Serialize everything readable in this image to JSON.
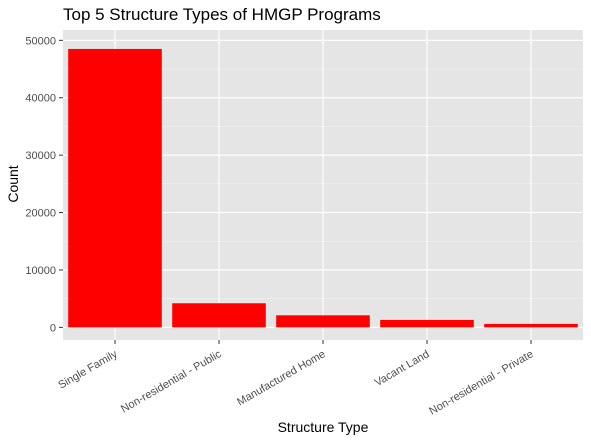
{
  "chart_data": {
    "type": "bar",
    "title": "Top 5 Structure Types of HMGP Programs",
    "xlabel": "Structure Type",
    "ylabel": "Count",
    "categories": [
      "Single Family",
      "Non-residential - Public",
      "Manufactured Home",
      "Vacant Land",
      "Non-residential - Private"
    ],
    "values": [
      48500,
      4200,
      2100,
      1300,
      600
    ],
    "yticks": [
      0,
      10000,
      20000,
      30000,
      40000,
      50000
    ],
    "ylim": [
      -2200,
      51800
    ],
    "grid": true,
    "legend": "none",
    "colors": {
      "bar": "#ff0000",
      "panel": "#e5e5e5",
      "grid_major": "#ffffff",
      "grid_minor": "#f2f2f2",
      "tick_label": "#4d4d4d",
      "tick_mark": "#333333"
    }
  }
}
